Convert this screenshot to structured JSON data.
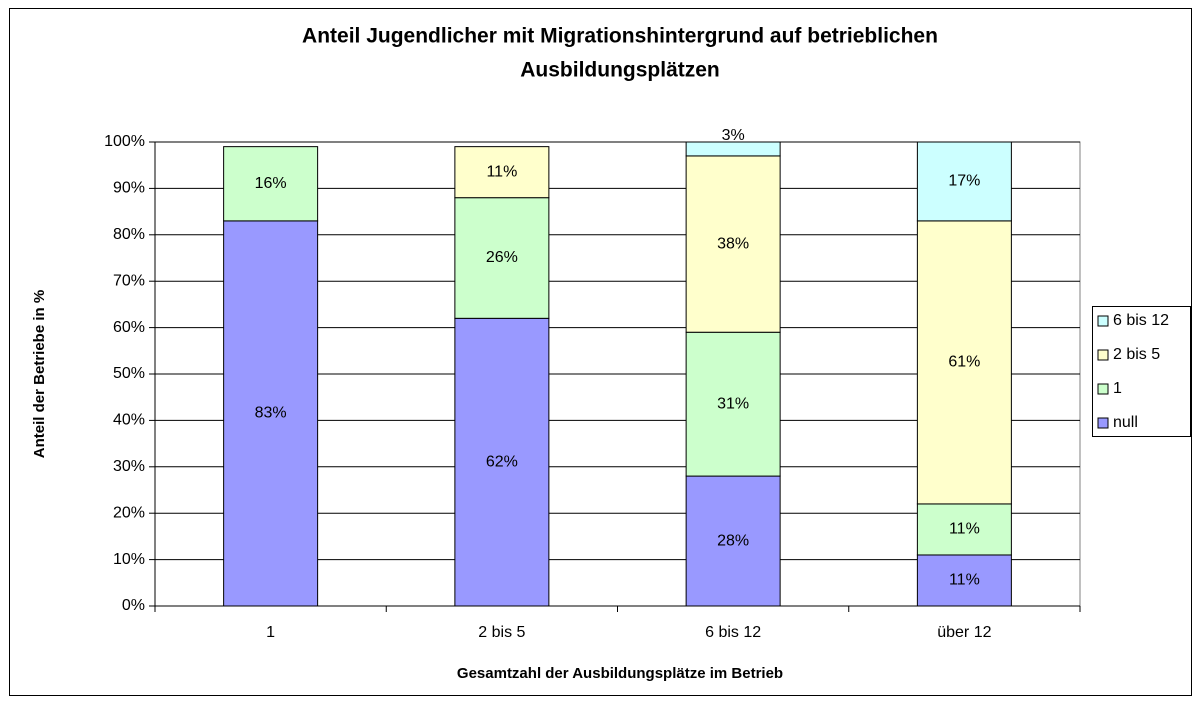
{
  "chart_data": {
    "type": "stacked_bar",
    "title": [
      "Anteil Jugendlicher mit Migrationshintergrund auf betrieblichen",
      "Ausbildungsplätzen"
    ],
    "x_label": "Gesamtzahl der Ausbildungsplätze im Betrieb",
    "y_label": "Anteil der Betriebe in %",
    "categories": [
      "1",
      "2 bis 5",
      "6 bis 12",
      "über 12"
    ],
    "series": [
      {
        "name": "null",
        "color": "#9999ff",
        "values": [
          83,
          62,
          28,
          11
        ],
        "value_labels": [
          "83%",
          "62%",
          "28%",
          "11%"
        ]
      },
      {
        "name": "1",
        "color": "#ccffcc",
        "values": [
          16,
          26,
          31,
          11
        ],
        "value_labels": [
          "16%",
          "26%",
          "31%",
          "11%"
        ]
      },
      {
        "name": "2 bis 5",
        "color": "#ffffcc",
        "values": [
          null,
          11,
          38,
          61
        ],
        "value_labels": [
          null,
          "11%",
          "38%",
          "61%"
        ]
      },
      {
        "name": "6 bis 12",
        "color": "#ccffff",
        "values": [
          null,
          null,
          3,
          17
        ],
        "value_labels": [
          null,
          null,
          "3%",
          "17%"
        ]
      }
    ],
    "ylim": [
      0,
      100
    ],
    "yticks": [
      {
        "value": 0,
        "label": "0%"
      },
      {
        "value": 10,
        "label": "10%"
      },
      {
        "value": 20,
        "label": "20%"
      },
      {
        "value": 30,
        "label": "30%"
      },
      {
        "value": 40,
        "label": "40%"
      },
      {
        "value": 50,
        "label": "50%"
      },
      {
        "value": 60,
        "label": "60%"
      },
      {
        "value": 70,
        "label": "70%"
      },
      {
        "value": 80,
        "label": "80%"
      },
      {
        "value": 90,
        "label": "90%"
      },
      {
        "value": 100,
        "label": "100%"
      }
    ],
    "grid": true,
    "legend": "right"
  }
}
